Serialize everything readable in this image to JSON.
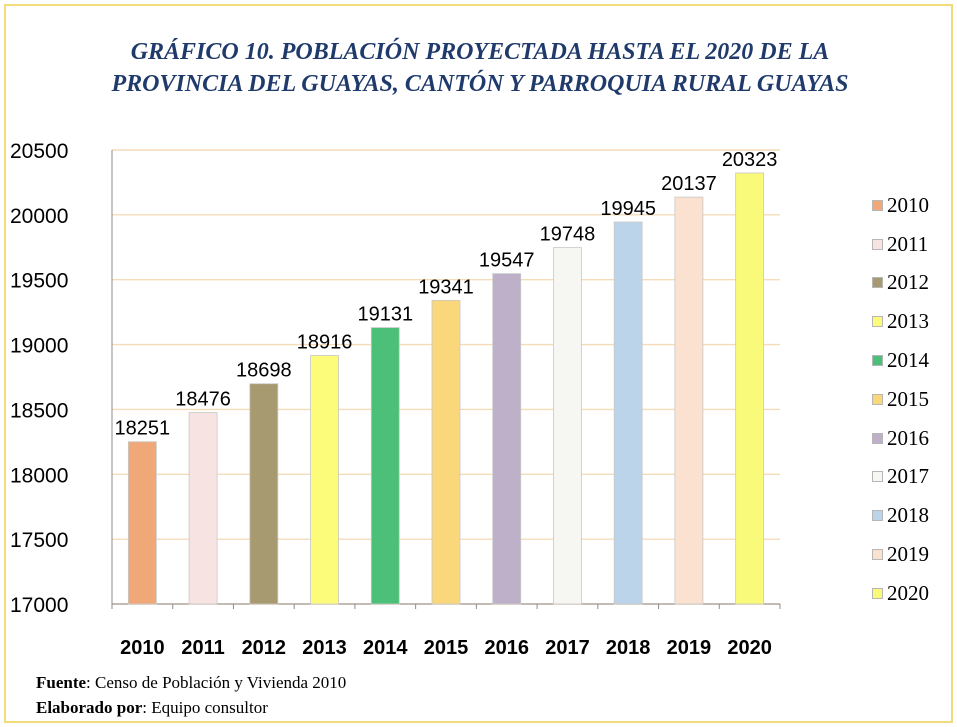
{
  "title_line1": "GRÁFICO 10. POBLACIÓN PROYECTADA HASTA EL 2020 DE LA",
  "title_line2": "PROVINCIA DEL GUAYAS, CANTÓN Y PARROQUIA RURAL GUAYAS",
  "footer": {
    "source_label": "Fuente",
    "source_text": "Censo de Población  y Vivienda 2010",
    "author_label": "Elaborado por",
    "author_text": "Equipo consultor"
  },
  "chart_data": {
    "type": "bar",
    "categories": [
      "2010",
      "2011",
      "2012",
      "2013",
      "2014",
      "2015",
      "2016",
      "2017",
      "2018",
      "2019",
      "2020"
    ],
    "values": [
      18251,
      18476,
      18698,
      18916,
      19131,
      19341,
      19547,
      19748,
      19945,
      20137,
      20323
    ],
    "colors": [
      "#f0a878",
      "#f7e4e2",
      "#a89a70",
      "#fcfc7a",
      "#4cc078",
      "#fbd77c",
      "#bdb0c8",
      "#f6f6f2",
      "#bcd4ea",
      "#fbe1cf",
      "#f9f97a"
    ],
    "ylim": [
      17000,
      20500
    ],
    "yticks": [
      "17000",
      "17500",
      "18000",
      "18500",
      "19000",
      "19500",
      "20000",
      "20500"
    ],
    "grid": true,
    "legend_position": "right",
    "xlabel": "",
    "ylabel": ""
  }
}
